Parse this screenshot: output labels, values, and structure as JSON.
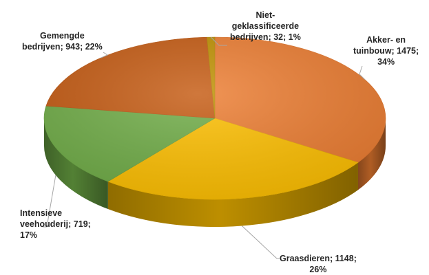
{
  "chart_data": {
    "type": "pie",
    "style": "3d",
    "start_angle_deg": 0,
    "direction": "clockwise",
    "slices": [
      {
        "name": "Akker- en tuinbouw",
        "value": 1475,
        "percent": 34,
        "color": "#ED7D31",
        "label_lines": [
          "Akker- en",
          "tuinbouw; 1475;",
          "34%"
        ]
      },
      {
        "name": "Graasdieren",
        "value": 1148,
        "percent": 26,
        "color": "#FFC000",
        "label_lines": [
          "Graasdieren; 1148;",
          "26%"
        ]
      },
      {
        "name": "Intensieve veehouderij",
        "value": 719,
        "percent": 17,
        "color": "#70AD47",
        "label_lines": [
          "Intensieve",
          "veehouderij; 719;",
          "17%"
        ]
      },
      {
        "name": "Gemengde bedrijven",
        "value": 943,
        "percent": 22,
        "color": "#C55A11",
        "label_lines": [
          "Gemengde",
          "bedrijven; 943; 22%"
        ]
      },
      {
        "name": "Niet-geklassificeerde bedrijven",
        "value": 32,
        "percent": 1,
        "color": "#BF9000",
        "label_lines": [
          "Niet-",
          "geklassificeerde",
          "bedrijven; 32; 1%"
        ]
      }
    ]
  }
}
